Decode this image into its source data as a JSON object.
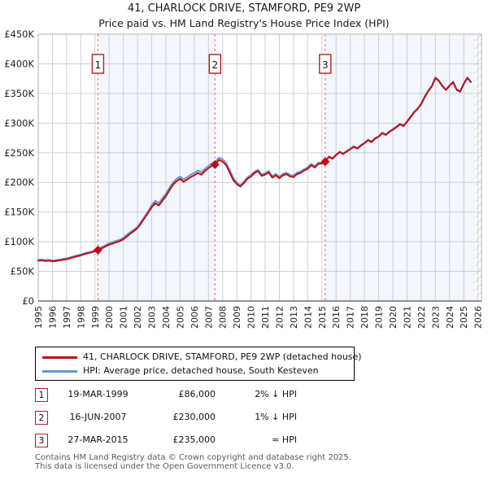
{
  "title": "41, CHARLOCK DRIVE, STAMFORD, PE9 2WP",
  "subtitle": "Price paid vs. HM Land Registry's House Price Index (HPI)",
  "colors": {
    "price_line": "#c00c14",
    "hpi_line": "#6699cc",
    "band_fill": "#f3f6fc",
    "grid": "#cfcfd4",
    "plot_border": "#b0b0b0",
    "axis_bottom": "#555555",
    "sale_dash": "#f47c7c",
    "sale_box_border": "#b22222",
    "hatch_line": "#c3c3cc",
    "tick_text": "#222222"
  },
  "chart_data": {
    "type": "line",
    "title": "41, CHARLOCK DRIVE, STAMFORD, PE9 2WP",
    "subtitle": "Price paid vs. HM Land Registry's House Price Index (HPI)",
    "units": "GBP_thousands",
    "x_start": 1995.0,
    "x_step": 0.25,
    "x_axis_years": [
      1995,
      1996,
      1997,
      1998,
      1999,
      2000,
      2001,
      2002,
      2003,
      2004,
      2005,
      2006,
      2007,
      2008,
      2009,
      2010,
      2011,
      2012,
      2013,
      2014,
      2015,
      2016,
      2017,
      2018,
      2019,
      2020,
      2021,
      2022,
      2023,
      2024,
      2025,
      2026
    ],
    "ylim_gbp": [
      0,
      450000
    ],
    "ytick_step_gbp": 50000,
    "grid": true,
    "legend_position": "below",
    "series": [
      {
        "name": "41, CHARLOCK DRIVE, STAMFORD, PE9 2WP (detached house)",
        "color_key": "price_line",
        "values": [
          68,
          68.5,
          67.5,
          68,
          67,
          67.5,
          68.5,
          69.5,
          70.5,
          72,
          74,
          75.5,
          77,
          79,
          80.5,
          82,
          84,
          86.5,
          89,
          92,
          95,
          97,
          99,
          101,
          104,
          109,
          114,
          118,
          123,
          131,
          140,
          149,
          158,
          165,
          161,
          169,
          177,
          187,
          196,
          202,
          206,
          201,
          205,
          209,
          212,
          216,
          213,
          219,
          224,
          228,
          231,
          238,
          235,
          229,
          217,
          204,
          197,
          193,
          199,
          206,
          210,
          216,
          219,
          211,
          213,
          217,
          208,
          212,
          207,
          212,
          214,
          210,
          209,
          214,
          216,
          220,
          223,
          229,
          225,
          231,
          232,
          236,
          243,
          240,
          246,
          251,
          248,
          252,
          256,
          260,
          257,
          262,
          266,
          271,
          268,
          274,
          277,
          283,
          280,
          285,
          289,
          293,
          298,
          295,
          302,
          310,
          318,
          324,
          332,
          344,
          354,
          362,
          376,
          371,
          362,
          356,
          363,
          369,
          356,
          353,
          366,
          376,
          369
        ]
      },
      {
        "name": "HPI: Average price, detached house, South Kesteven",
        "color_key": "hpi_line",
        "values": [
          69.5,
          70,
          69,
          69.5,
          68.5,
          69,
          70,
          71,
          72,
          73.5,
          75.5,
          77,
          78.5,
          80.5,
          82,
          83.5,
          85.5,
          88.5,
          91,
          94,
          97.5,
          99.5,
          101.5,
          103.5,
          106.5,
          111.5,
          116.5,
          120.5,
          125.5,
          133.5,
          142.5,
          151.5,
          162,
          169,
          165,
          173,
          181,
          191,
          200,
          206,
          210,
          205,
          209,
          213,
          216,
          220,
          217,
          223,
          228,
          232,
          235,
          242,
          239,
          233,
          221,
          208,
          199.5,
          195.5,
          201.5,
          208.5,
          212.5,
          218.5,
          221.5,
          213.5,
          215.5,
          219.5,
          210.5,
          214.5,
          209.5,
          214.5,
          216.5,
          212.5,
          211.5,
          216.5,
          218.5,
          222.5,
          225.5,
          231.5,
          227.5,
          233.5,
          233,
          237,
          244,
          241,
          247,
          252,
          249,
          253,
          257,
          261,
          258,
          263,
          267,
          272,
          269,
          275,
          278,
          284,
          281,
          286,
          290,
          294,
          299,
          296,
          303,
          311,
          319,
          325,
          333,
          345,
          355,
          363,
          377,
          372,
          363,
          357,
          364,
          370,
          357,
          354,
          367,
          377,
          370
        ]
      }
    ],
    "sales": [
      {
        "n": "1",
        "x": 1999.21,
        "value_gbp": 86000
      },
      {
        "n": "2",
        "x": 2007.46,
        "value_gbp": 230000
      },
      {
        "n": "3",
        "x": 2015.23,
        "value_gbp": 235000
      }
    ],
    "shaded_regions": [
      [
        1999.21,
        2007.46
      ],
      [
        2015.23,
        2026.25
      ]
    ],
    "hatched_region": [
      2025.77,
      2026.25
    ]
  },
  "legend": {
    "items": [
      {
        "label": "41, CHARLOCK DRIVE, STAMFORD, PE9 2WP (detached house)",
        "color_key": "price_line"
      },
      {
        "label": "HPI: Average price, detached house, South Kesteven",
        "color_key": "hpi_line"
      }
    ]
  },
  "transactions": [
    {
      "n": "1",
      "date": "19-MAR-1999",
      "price": "£86,000",
      "vs_hpi": "2% ↓ HPI"
    },
    {
      "n": "2",
      "date": "16-JUN-2007",
      "price": "£230,000",
      "vs_hpi": "1% ↓ HPI"
    },
    {
      "n": "3",
      "date": "27-MAR-2015",
      "price": "£235,000",
      "vs_hpi": "≈ HPI"
    }
  ],
  "footer": {
    "line1": "Contains HM Land Registry data © Crown copyright and database right 2025.",
    "line2": "This data is licensed under the Open Government Licence v3.0."
  }
}
